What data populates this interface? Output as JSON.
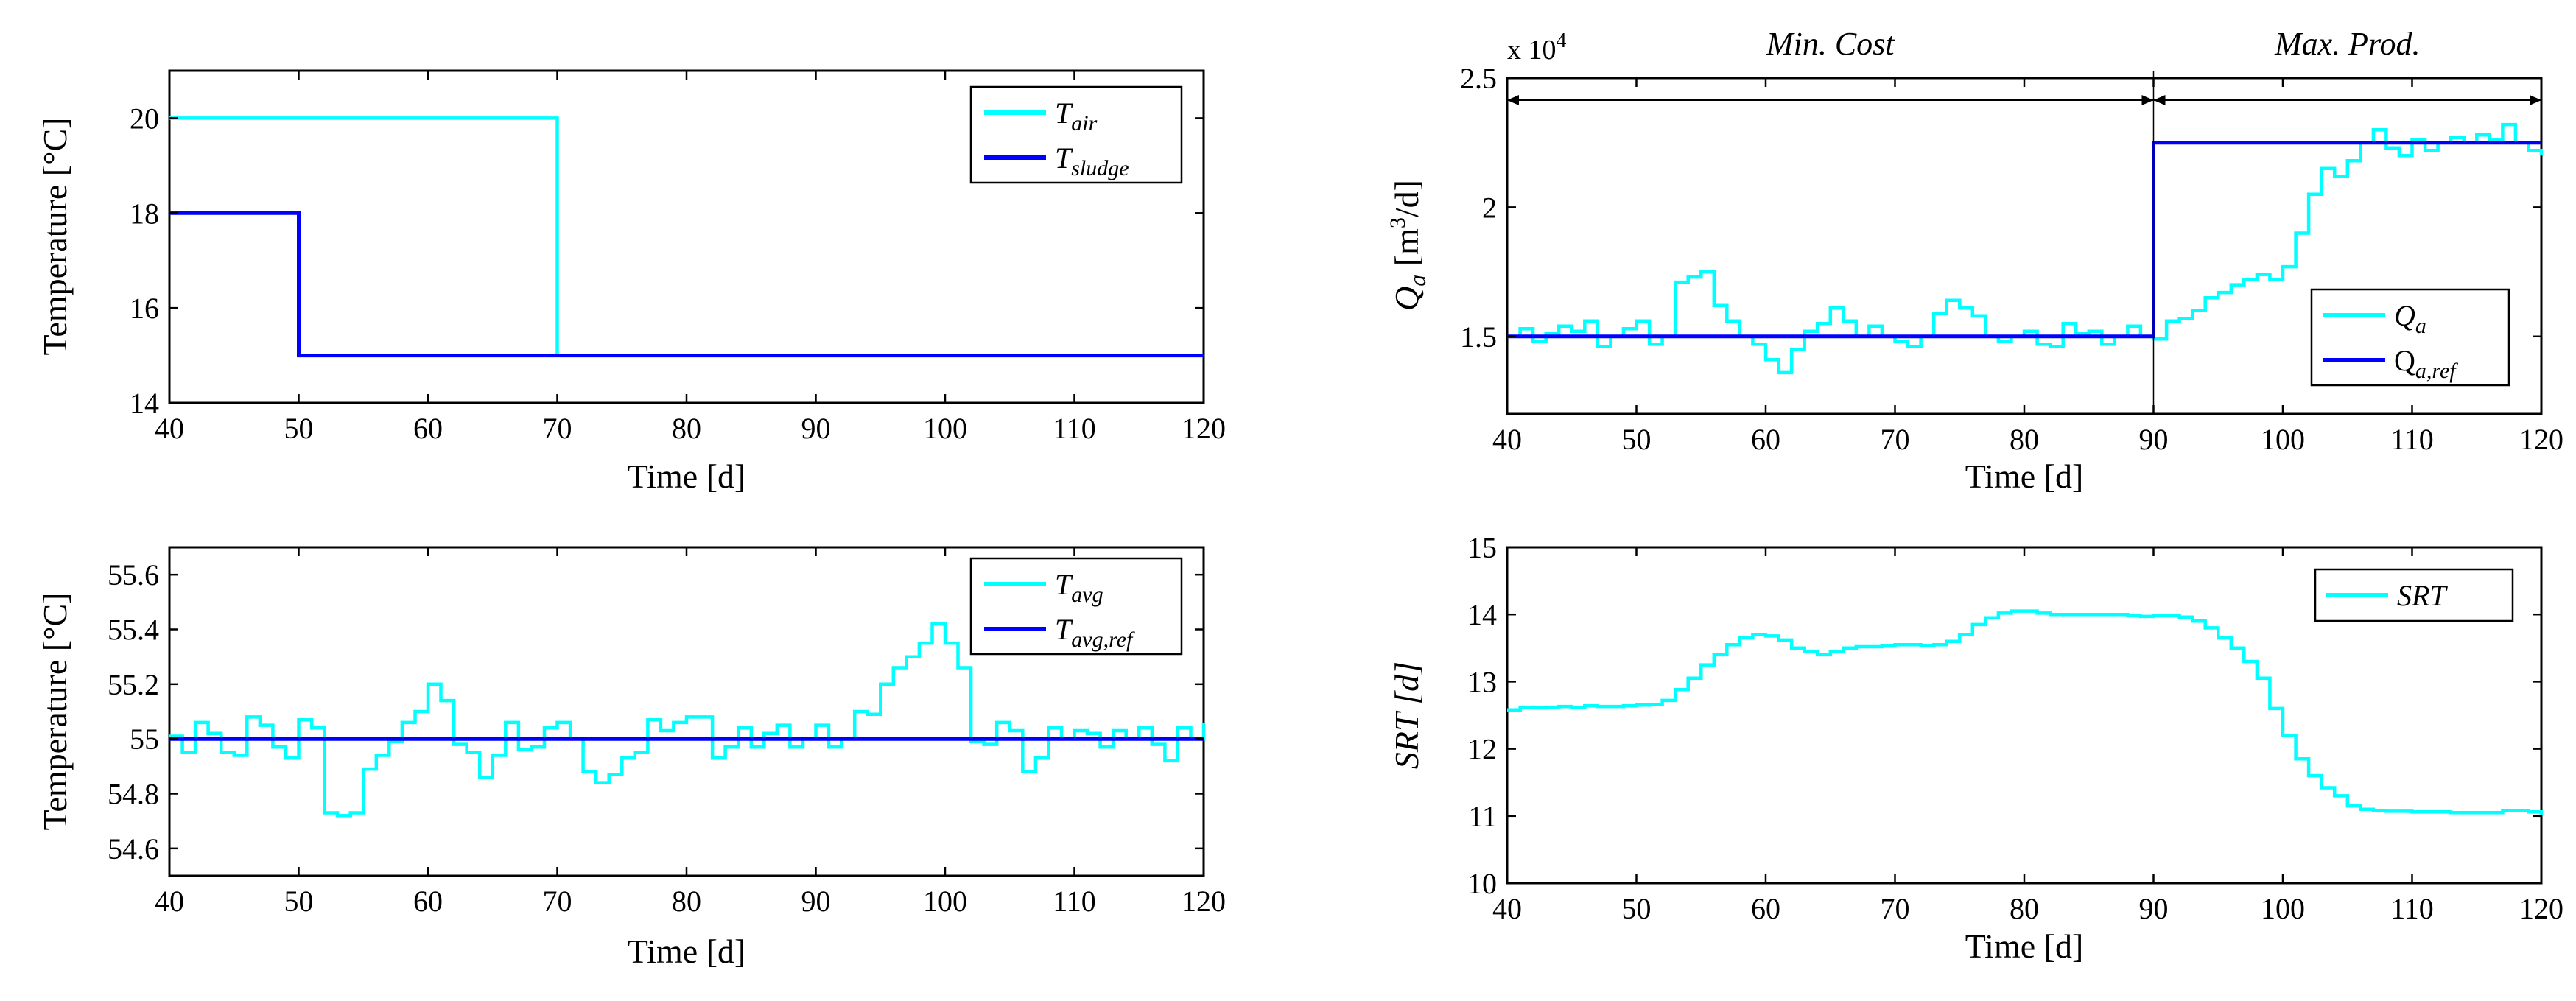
{
  "chart_data": [
    {
      "id": "top-left",
      "type": "line",
      "xlabel": "Time [d]",
      "ylabel": "Temperature [°C]",
      "xlim": [
        40,
        120
      ],
      "ylim": [
        14,
        21
      ],
      "xticks": [
        40,
        50,
        60,
        70,
        80,
        90,
        100,
        110,
        120
      ],
      "yticks": [
        14,
        16,
        18,
        20
      ],
      "ytick_labels": [
        "14",
        "16",
        "18",
        "20"
      ],
      "legend": "top-right",
      "series": [
        {
          "name": "T",
          "sub": "air",
          "color": "#00FFFF",
          "points": [
            [
              40,
              20
            ],
            [
              70,
              20
            ],
            [
              70,
              15
            ],
            [
              120,
              15
            ]
          ]
        },
        {
          "name": "T",
          "sub": "sludge",
          "color": "#0000FF",
          "points": [
            [
              40,
              18
            ],
            [
              50,
              18
            ],
            [
              50,
              15
            ],
            [
              120,
              15
            ]
          ]
        }
      ]
    },
    {
      "id": "top-right",
      "type": "line",
      "xlabel": "Time [d]",
      "ylabel_main": "Q",
      "ylabel_sub": "a",
      "ylabel_unit": " [m",
      "ylabel_sup": "3",
      "ylabel_tail": "/d]",
      "multiplier_base": "x 10",
      "multiplier_exp": "4",
      "xlim": [
        40,
        120
      ],
      "ylim": [
        1.2,
        2.5
      ],
      "xticks": [
        40,
        50,
        60,
        70,
        80,
        90,
        100,
        110,
        120
      ],
      "yticks": [
        1.5,
        2,
        2.5
      ],
      "ytick_labels": [
        "1.5",
        "2",
        "2.5"
      ],
      "legend": "bottom-right",
      "annotations": [
        {
          "text": "Min. Cost",
          "from": 40,
          "to": 90
        },
        {
          "text": "Max. Prod.",
          "from": 90,
          "to": 120
        }
      ],
      "series": [
        {
          "name": "Q",
          "sub": "a",
          "color": "#00FFFF",
          "step": true,
          "x0": 40,
          "dx": 1,
          "values": [
            1.5,
            1.53,
            1.48,
            1.51,
            1.54,
            1.52,
            1.56,
            1.46,
            1.5,
            1.53,
            1.56,
            1.47,
            1.5,
            1.71,
            1.73,
            1.75,
            1.62,
            1.56,
            1.5,
            1.47,
            1.41,
            1.36,
            1.45,
            1.52,
            1.55,
            1.61,
            1.56,
            1.5,
            1.54,
            1.5,
            1.48,
            1.46,
            1.5,
            1.59,
            1.64,
            1.61,
            1.58,
            1.5,
            1.48,
            1.5,
            1.52,
            1.47,
            1.46,
            1.55,
            1.51,
            1.52,
            1.47,
            1.5,
            1.54,
            1.5,
            1.49,
            1.56,
            1.57,
            1.6,
            1.65,
            1.67,
            1.7,
            1.72,
            1.74,
            1.72,
            1.77,
            1.9,
            2.05,
            2.15,
            2.12,
            2.18,
            2.25,
            2.3,
            2.23,
            2.2,
            2.26,
            2.22,
            2.25,
            2.27,
            2.25,
            2.28,
            2.26,
            2.32,
            2.25,
            2.22,
            2.2
          ]
        },
        {
          "name": "Q",
          "sub": "a,ref",
          "color": "#0000FF",
          "points": [
            [
              40,
              1.5
            ],
            [
              90,
              1.5
            ],
            [
              90,
              2.25
            ],
            [
              120,
              2.25
            ]
          ]
        }
      ]
    },
    {
      "id": "bottom-left",
      "type": "line",
      "xlabel": "Time [d]",
      "ylabel": "Temperature [°C]",
      "xlim": [
        40,
        120
      ],
      "ylim": [
        54.5,
        55.7
      ],
      "xticks": [
        40,
        50,
        60,
        70,
        80,
        90,
        100,
        110,
        120
      ],
      "yticks": [
        54.6,
        54.8,
        55,
        55.2,
        55.4,
        55.6
      ],
      "ytick_labels": [
        "54.6",
        "54.8",
        "55",
        "55.2",
        "55.4",
        "55.6"
      ],
      "legend": "top-right",
      "series": [
        {
          "name": "T",
          "sub": "avg",
          "color": "#00FFFF",
          "step": true,
          "x0": 40,
          "dx": 1,
          "values": [
            55.01,
            54.95,
            55.06,
            55.02,
            54.95,
            54.94,
            55.08,
            55.05,
            54.97,
            54.93,
            55.07,
            55.04,
            54.73,
            54.72,
            54.73,
            54.89,
            54.94,
            54.99,
            55.06,
            55.1,
            55.2,
            55.14,
            54.98,
            54.95,
            54.86,
            54.94,
            55.06,
            54.96,
            54.97,
            55.04,
            55.06,
            55.0,
            54.88,
            54.84,
            54.87,
            54.93,
            54.95,
            55.07,
            55.03,
            55.06,
            55.08,
            55.08,
            54.93,
            54.97,
            55.04,
            54.97,
            55.02,
            55.05,
            54.97,
            55.0,
            55.05,
            54.97,
            55.0,
            55.1,
            55.09,
            55.2,
            55.26,
            55.3,
            55.35,
            55.42,
            55.35,
            55.26,
            54.99,
            54.98,
            55.06,
            55.03,
            54.88,
            54.93,
            55.04,
            55.0,
            55.03,
            55.02,
            54.97,
            55.03,
            55.0,
            55.04,
            54.98,
            54.92,
            55.04,
            55.0,
            55.06
          ]
        },
        {
          "name": "T",
          "sub": "avg,ref",
          "color": "#0000FF",
          "points": [
            [
              40,
              55
            ],
            [
              120,
              55
            ]
          ]
        }
      ]
    },
    {
      "id": "bottom-right",
      "type": "line",
      "xlabel": "Time [d]",
      "ylabel": "SRT [d]",
      "xlim": [
        40,
        120
      ],
      "ylim": [
        10,
        15
      ],
      "xticks": [
        40,
        50,
        60,
        70,
        80,
        90,
        100,
        110,
        120
      ],
      "yticks": [
        10,
        11,
        12,
        13,
        14,
        15
      ],
      "ytick_labels": [
        "10",
        "11",
        "12",
        "13",
        "14",
        "15"
      ],
      "legend": "top-right",
      "series": [
        {
          "name": "SRT",
          "sub": "",
          "color": "#00FFFF",
          "step": true,
          "x0": 40,
          "dx": 1,
          "values": [
            12.58,
            12.62,
            12.61,
            12.62,
            12.63,
            12.62,
            12.64,
            12.63,
            12.63,
            12.64,
            12.65,
            12.66,
            12.72,
            12.88,
            13.05,
            13.25,
            13.4,
            13.55,
            13.65,
            13.7,
            13.68,
            13.62,
            13.5,
            13.45,
            13.4,
            13.45,
            13.5,
            13.52,
            13.52,
            13.53,
            13.55,
            13.55,
            13.54,
            13.55,
            13.6,
            13.7,
            13.85,
            13.95,
            14.02,
            14.05,
            14.05,
            14.02,
            14.0,
            14.0,
            14.0,
            14.0,
            14.0,
            14.0,
            13.98,
            13.97,
            13.98,
            13.98,
            13.96,
            13.9,
            13.8,
            13.65,
            13.5,
            13.3,
            13.05,
            12.6,
            12.2,
            11.85,
            11.6,
            11.42,
            11.3,
            11.15,
            11.1,
            11.08,
            11.07,
            11.07,
            11.06,
            11.06,
            11.06,
            11.05,
            11.05,
            11.05,
            11.05,
            11.08,
            11.08,
            11.06,
            11.02
          ]
        }
      ]
    }
  ]
}
